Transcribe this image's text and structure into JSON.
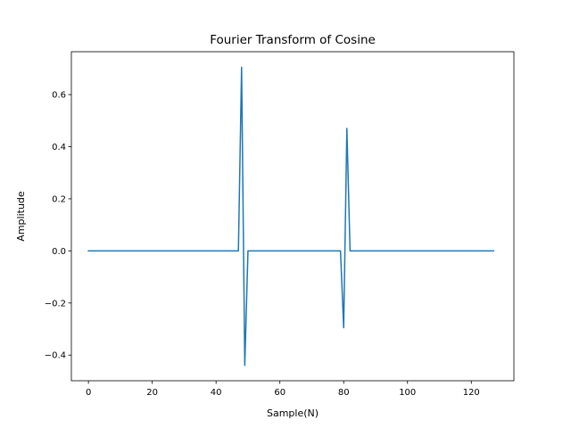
{
  "chart_data": {
    "type": "line",
    "title": "Fourier Transform of Cosine",
    "xlabel": "Sample(N)",
    "ylabel": "Amplitude",
    "xlim": [
      -5.35,
      133.35
    ],
    "ylim": [
      -0.4985,
      0.7645
    ],
    "x_ticks": [
      0,
      20,
      40,
      60,
      80,
      100,
      120
    ],
    "y_ticks": [
      -0.4,
      -0.2,
      0.0,
      0.2,
      0.4,
      0.6
    ],
    "x_tick_labels": [
      "0",
      "20",
      "40",
      "60",
      "80",
      "100",
      "120"
    ],
    "y_tick_labels": [
      "−0.4",
      "−0.2",
      "0.0",
      "0.2",
      "0.4",
      "0.6"
    ],
    "grid": false,
    "colors": {
      "line": "#1f77b4",
      "axes": "#000000",
      "background": "#ffffff"
    },
    "series": [
      {
        "x": [
          0,
          47,
          48,
          49,
          50,
          79,
          80,
          81,
          82,
          127
        ],
        "y": [
          0,
          0,
          0.705,
          -0.44,
          0,
          0,
          -0.295,
          0.47,
          0,
          0
        ]
      }
    ]
  }
}
